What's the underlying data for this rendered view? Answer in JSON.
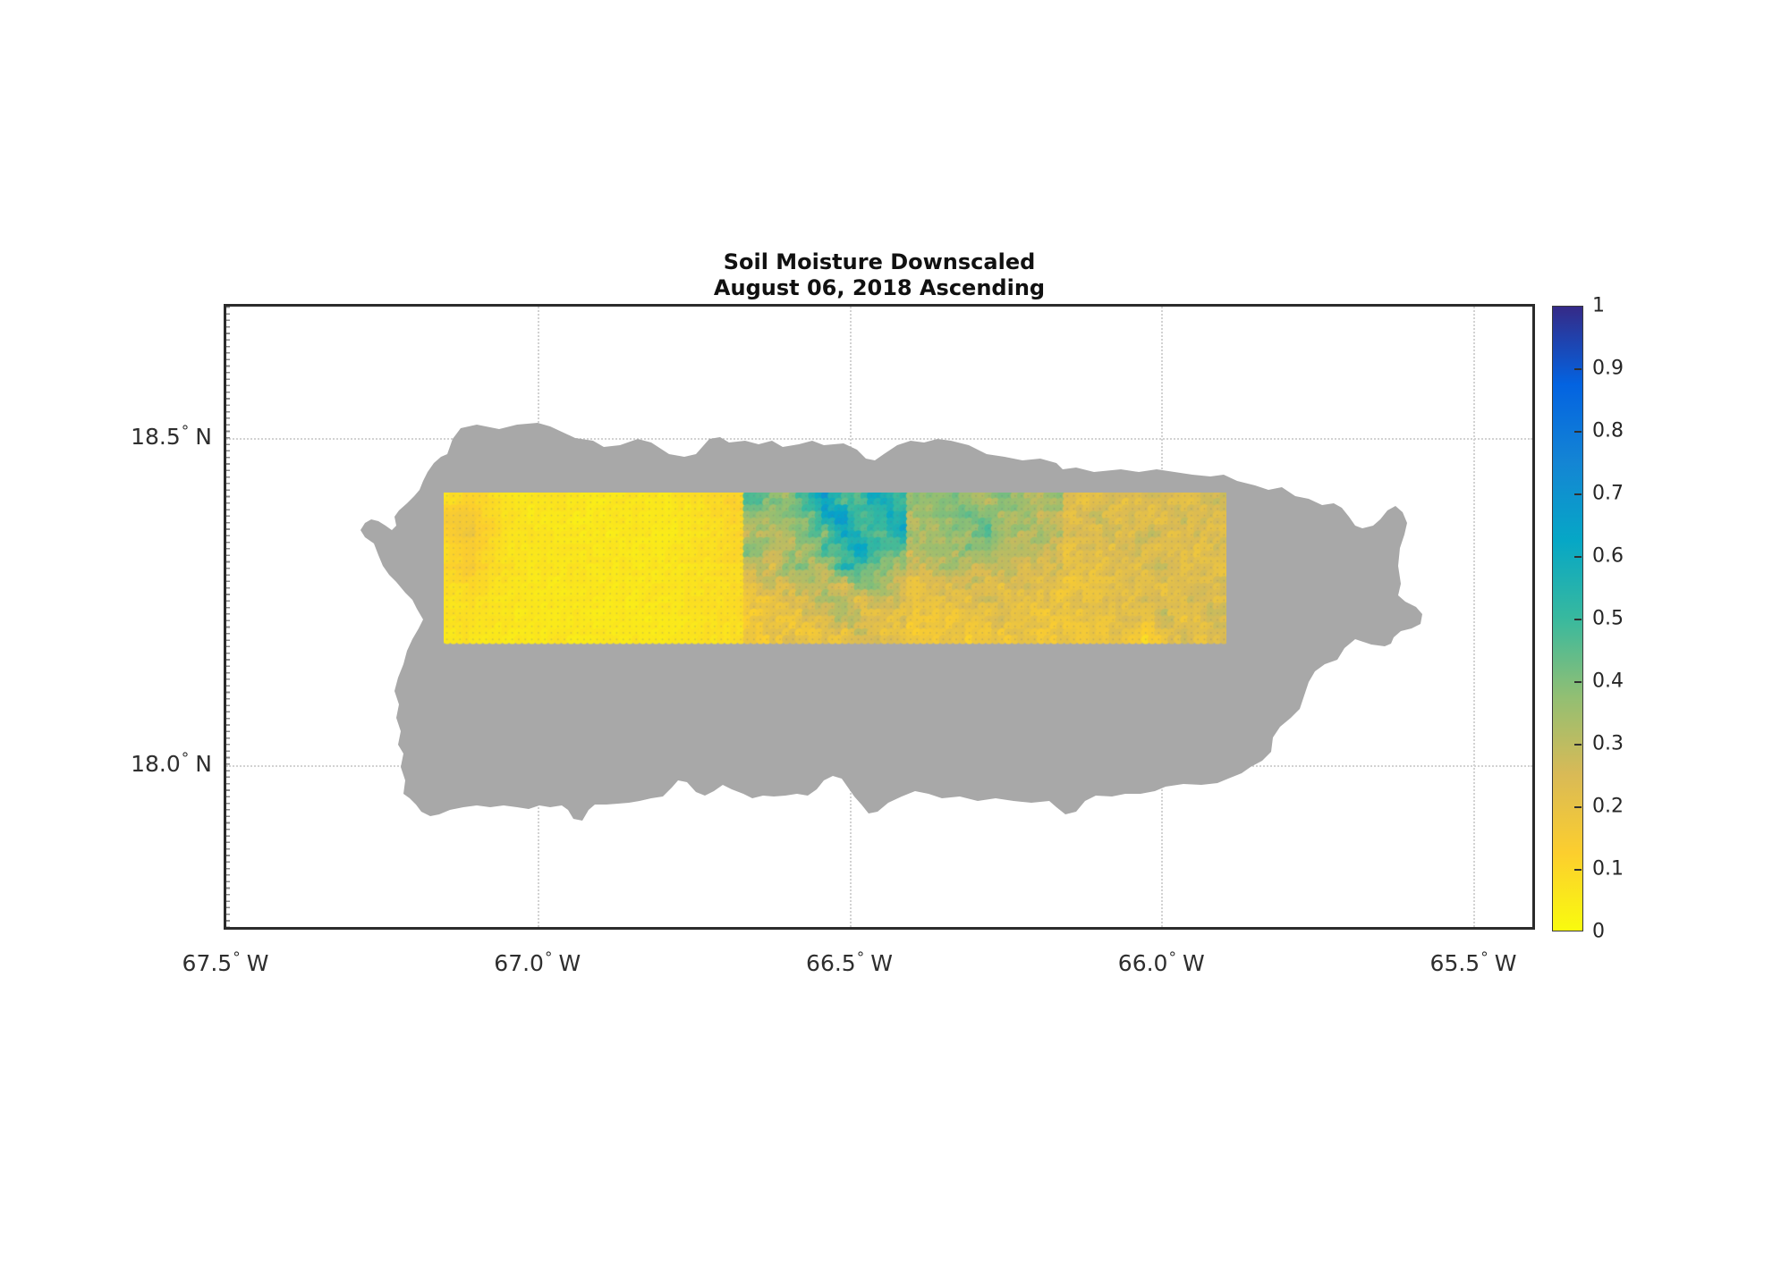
{
  "title": {
    "line1": "Soil Moisture Downscaled",
    "line2": "August 06, 2018 Ascending"
  },
  "axes": {
    "x_tick_values": [
      67.5,
      67.0,
      66.5,
      66.0,
      65.5
    ],
    "x_tick_labels": [
      "67.5",
      "67.0",
      "66.5",
      "66.0",
      "65.5"
    ],
    "x_hemisphere": "W",
    "y_tick_values": [
      18.5,
      18.0
    ],
    "y_tick_labels": [
      "18.5",
      "18.0"
    ],
    "y_hemisphere": "N",
    "degree_symbol": "°"
  },
  "colorbar": {
    "min": 0,
    "max": 1,
    "tick_labels": [
      "0",
      "0.1",
      "0.2",
      "0.3",
      "0.4",
      "0.5",
      "0.6",
      "0.7",
      "0.8",
      "0.9",
      "1"
    ],
    "tick_values": [
      0,
      0.1,
      0.2,
      0.3,
      0.4,
      0.5,
      0.6,
      0.7,
      0.8,
      0.9,
      1
    ],
    "colormap_name": "parula-flipped",
    "gradient_stops": [
      {
        "v": 0.0,
        "color": "#f9fb0e"
      },
      {
        "v": 0.125,
        "color": "#fcce2e"
      },
      {
        "v": 0.25,
        "color": "#d9ba56"
      },
      {
        "v": 0.375,
        "color": "#92bf73"
      },
      {
        "v": 0.5,
        "color": "#38b99e"
      },
      {
        "v": 0.625,
        "color": "#06a7c6"
      },
      {
        "v": 0.75,
        "color": "#1485d4"
      },
      {
        "v": 0.875,
        "color": "#0363e1"
      },
      {
        "v": 1.0,
        "color": "#352a87"
      }
    ]
  },
  "land_color": "#a8a8a8",
  "chart_data": {
    "type": "heatmap",
    "title": "Soil Moisture Downscaled",
    "subtitle": "August 06, 2018 Ascending",
    "xlabel_ticks_degW": [
      67.5,
      67.0,
      66.5,
      66.0,
      65.5
    ],
    "ylabel_ticks_degN": [
      18.5,
      18.0
    ],
    "xlim_degW": [
      67.503,
      65.401
    ],
    "ylim_degN": [
      17.749,
      18.705
    ],
    "grid": "dotted",
    "colorbar_range": [
      0,
      1
    ],
    "colorbar_tick_step": 0.1,
    "land_mask_extent_degW": [
      67.29,
      65.59
    ],
    "land_mask_extent_degN": [
      17.92,
      18.52
    ],
    "swath_extent_degW": [
      67.154,
      65.901
    ],
    "swath_extent_degN": [
      18.19,
      18.421
    ],
    "swath_tile_col_bounds": [
      0,
      17,
      26,
      35,
      44
    ],
    "swath_tile_notes": [
      "very dry uniform yellow ~0.05-0.1, slight orange patches at west edge",
      "wet green/teal with blue streaks 0.3-0.68 on top, drier orange 0.15-0.25 bottom",
      "moderate green 0.28-0.48 top, orange 0.15-0.25 bottom",
      "orange/gold 0.16-0.26 with scattered green patches ~0.3"
    ],
    "values_grid_rows": 9,
    "values_grid_cols": 44,
    "values": [
      [
        0.08,
        0.12,
        0.09,
        0.07,
        0.06,
        0.06,
        0.07,
        0.06,
        0.05,
        0.06,
        0.07,
        0.06,
        0.06,
        0.07,
        0.08,
        0.1,
        0.12,
        0.45,
        0.4,
        0.35,
        0.55,
        0.65,
        0.45,
        0.5,
        0.62,
        0.48,
        0.38,
        0.35,
        0.42,
        0.36,
        0.3,
        0.4,
        0.35,
        0.32,
        0.36,
        0.22,
        0.2,
        0.24,
        0.2,
        0.22,
        0.25,
        0.2,
        0.24,
        0.26
      ],
      [
        0.14,
        0.16,
        0.1,
        0.07,
        0.06,
        0.05,
        0.06,
        0.05,
        0.05,
        0.06,
        0.06,
        0.05,
        0.06,
        0.06,
        0.07,
        0.09,
        0.11,
        0.35,
        0.3,
        0.42,
        0.38,
        0.6,
        0.68,
        0.42,
        0.55,
        0.58,
        0.32,
        0.4,
        0.35,
        0.45,
        0.38,
        0.32,
        0.38,
        0.3,
        0.28,
        0.2,
        0.3,
        0.22,
        0.25,
        0.2,
        0.22,
        0.28,
        0.22,
        0.24
      ],
      [
        0.12,
        0.18,
        0.11,
        0.08,
        0.07,
        0.06,
        0.06,
        0.05,
        0.06,
        0.05,
        0.06,
        0.06,
        0.05,
        0.06,
        0.07,
        0.08,
        0.1,
        0.3,
        0.35,
        0.28,
        0.45,
        0.4,
        0.62,
        0.55,
        0.45,
        0.6,
        0.35,
        0.3,
        0.38,
        0.35,
        0.48,
        0.36,
        0.3,
        0.34,
        0.3,
        0.24,
        0.2,
        0.26,
        0.2,
        0.3,
        0.24,
        0.2,
        0.26,
        0.22
      ],
      [
        0.09,
        0.13,
        0.09,
        0.07,
        0.06,
        0.06,
        0.07,
        0.06,
        0.05,
        0.06,
        0.05,
        0.06,
        0.06,
        0.07,
        0.08,
        0.09,
        0.1,
        0.42,
        0.28,
        0.35,
        0.3,
        0.5,
        0.45,
        0.65,
        0.5,
        0.42,
        0.28,
        0.34,
        0.3,
        0.4,
        0.35,
        0.3,
        0.35,
        0.28,
        0.25,
        0.2,
        0.24,
        0.2,
        0.28,
        0.22,
        0.2,
        0.24,
        0.2,
        0.25
      ],
      [
        0.11,
        0.15,
        0.1,
        0.08,
        0.07,
        0.06,
        0.06,
        0.07,
        0.06,
        0.06,
        0.06,
        0.05,
        0.06,
        0.06,
        0.07,
        0.08,
        0.09,
        0.3,
        0.25,
        0.4,
        0.35,
        0.28,
        0.55,
        0.48,
        0.4,
        0.35,
        0.25,
        0.28,
        0.35,
        0.3,
        0.26,
        0.32,
        0.26,
        0.24,
        0.26,
        0.22,
        0.18,
        0.25,
        0.2,
        0.24,
        0.3,
        0.2,
        0.24,
        0.2
      ],
      [
        0.08,
        0.1,
        0.08,
        0.07,
        0.06,
        0.06,
        0.05,
        0.06,
        0.06,
        0.05,
        0.06,
        0.06,
        0.07,
        0.06,
        0.07,
        0.08,
        0.09,
        0.22,
        0.28,
        0.25,
        0.35,
        0.3,
        0.25,
        0.42,
        0.35,
        0.28,
        0.2,
        0.24,
        0.22,
        0.28,
        0.24,
        0.2,
        0.25,
        0.22,
        0.2,
        0.18,
        0.22,
        0.2,
        0.24,
        0.18,
        0.22,
        0.26,
        0.2,
        0.24
      ],
      [
        0.07,
        0.08,
        0.07,
        0.06,
        0.06,
        0.05,
        0.06,
        0.05,
        0.06,
        0.06,
        0.05,
        0.06,
        0.06,
        0.07,
        0.07,
        0.08,
        0.09,
        0.18,
        0.2,
        0.25,
        0.22,
        0.35,
        0.28,
        0.22,
        0.3,
        0.25,
        0.18,
        0.2,
        0.24,
        0.2,
        0.26,
        0.22,
        0.18,
        0.22,
        0.18,
        0.2,
        0.18,
        0.24,
        0.18,
        0.26,
        0.2,
        0.22,
        0.28,
        0.22
      ],
      [
        0.07,
        0.08,
        0.07,
        0.06,
        0.05,
        0.06,
        0.05,
        0.06,
        0.05,
        0.06,
        0.06,
        0.05,
        0.06,
        0.06,
        0.07,
        0.08,
        0.08,
        0.16,
        0.18,
        0.15,
        0.25,
        0.2,
        0.35,
        0.25,
        0.2,
        0.22,
        0.17,
        0.18,
        0.16,
        0.22,
        0.18,
        0.24,
        0.2,
        0.17,
        0.19,
        0.17,
        0.22,
        0.18,
        0.25,
        0.2,
        0.3,
        0.18,
        0.22,
        0.26
      ],
      [
        0.06,
        0.07,
        0.06,
        0.06,
        0.05,
        0.05,
        0.06,
        0.05,
        0.06,
        0.05,
        0.06,
        0.06,
        0.05,
        0.06,
        0.07,
        0.07,
        0.08,
        0.15,
        0.17,
        0.2,
        0.16,
        0.22,
        0.18,
        0.28,
        0.22,
        0.18,
        0.16,
        0.18,
        0.17,
        0.15,
        0.2,
        0.17,
        0.18,
        0.16,
        0.17,
        0.18,
        0.16,
        0.2,
        0.18,
        0.1,
        0.2,
        0.24,
        0.18,
        0.22
      ]
    ]
  }
}
